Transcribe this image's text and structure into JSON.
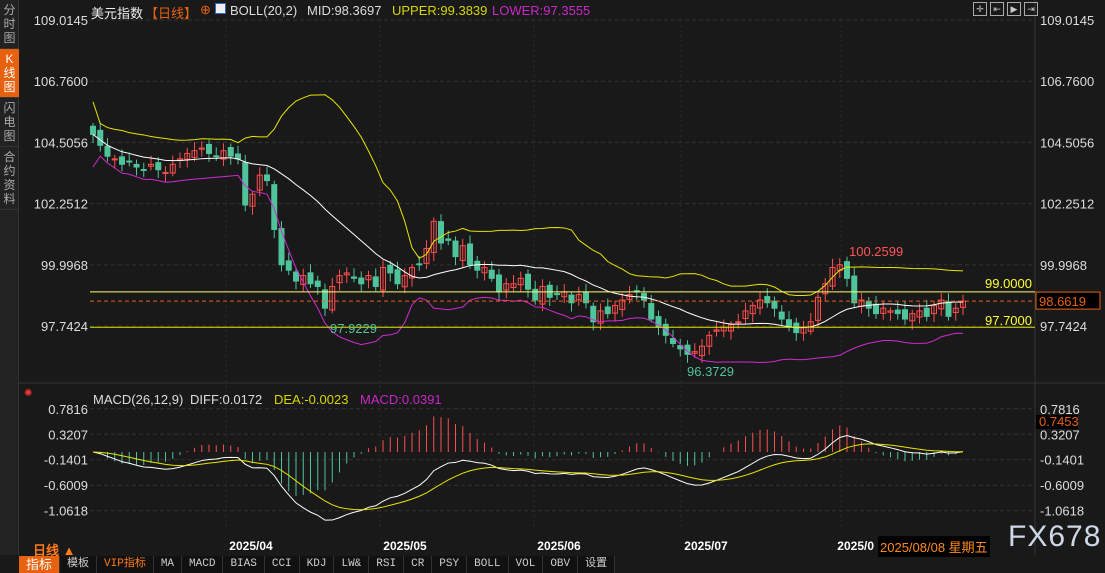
{
  "sidebar": {
    "tabs": [
      {
        "label": "分时图"
      },
      {
        "label": "K线图",
        "active": true
      },
      {
        "label": "闪电图"
      },
      {
        "label": "合约资料"
      }
    ]
  },
  "header": {
    "name": "美元指数",
    "period": "【日线】",
    "boll_label": "BOLL(20,2)",
    "mid": "MID:98.3697",
    "upper": "UPPER:99.3839",
    "lower": "LOWER:97.3555"
  },
  "toolbar": {
    "icons": [
      "crosshair-icon",
      "zoom-in-icon",
      "zoom-out-icon",
      "scroll-right-icon"
    ]
  },
  "price_axis": {
    "ticks": [
      "109.0145",
      "106.7600",
      "104.5056",
      "102.2512",
      "99.9968",
      "97.7424"
    ]
  },
  "annotations": {
    "high": "100.2599",
    "low1": "97.9229",
    "low2": "96.3729",
    "line_high": "99.0000",
    "line_low": "97.7000",
    "current": "98.6619"
  },
  "macd": {
    "label": "MACD(26,12,9)",
    "diff": "DIFF:0.0172",
    "dea": "DEA:-0.0023",
    "macd": "MACD:0.0391",
    "ticks": [
      "0.7816",
      "0.3207",
      "-0.1401",
      "-0.6009",
      "-1.0618"
    ],
    "current": "0.7453"
  },
  "dates": [
    "2025/04",
    "2025/05",
    "2025/06",
    "2025/07",
    "2025/0"
  ],
  "cursor_date": "2025/08/08 星期五",
  "period_selector": "日线 ▲",
  "watermark": "FX678",
  "bottom_tabs": [
    "指标",
    "模板",
    "VIP指标",
    "MA",
    "MACD",
    "BIAS",
    "CCI",
    "KDJ",
    "LW&",
    "RSI",
    "CR",
    "PSY",
    "BOLL",
    "VOL",
    "OBV",
    "设置"
  ],
  "colors": {
    "up": "#ff4d4d",
    "down": "#4fc49a",
    "mid": "#ffffff",
    "upper": "#e6e600",
    "lower": "#d02bd0",
    "accent": "#e8610e"
  },
  "chart_data": {
    "type": "candlestick",
    "ylim": [
      96.0,
      109.0145
    ],
    "closes": [
      104.8,
      104.4,
      104.0,
      103.9,
      103.7,
      103.8,
      103.6,
      103.5,
      103.7,
      103.5,
      103.4,
      103.7,
      103.9,
      104.1,
      104.2,
      104.3,
      104.1,
      104.0,
      104.2,
      104.0,
      103.9,
      102.2,
      102.6,
      103.3,
      103.1,
      101.3,
      100.0,
      99.8,
      99.4,
      99.6,
      99.3,
      99.2,
      98.4,
      99.2,
      99.6,
      99.7,
      99.5,
      99.3,
      99.6,
      99.2,
      99.9,
      99.7,
      99.3,
      99.6,
      99.9,
      100.0,
      100.6,
      101.6,
      100.8,
      100.9,
      100.3,
      100.7,
      100.0,
      99.8,
      99.9,
      99.5,
      99.0,
      99.3,
      99.3,
      99.5,
      99.1,
      98.7,
      99.2,
      98.8,
      98.9,
      99.0,
      98.6,
      98.9,
      98.6,
      97.9,
      98.3,
      98.2,
      98.5,
      98.7,
      98.9,
      99.0,
      98.7,
      98.0,
      97.7,
      97.4,
      97.1,
      96.9,
      96.7,
      96.8,
      97.0,
      97.4,
      97.6,
      97.7,
      97.8,
      97.9,
      98.3,
      98.5,
      98.7,
      98.6,
      98.4,
      98.0,
      97.7,
      97.5,
      97.7,
      97.9,
      98.8,
      99.3,
      99.9,
      100.0,
      99.5,
      98.6,
      98.7,
      98.4,
      98.2,
      98.4,
      98.3,
      98.2,
      98.0,
      98.2,
      98.3,
      98.1,
      98.5,
      98.7,
      98.1,
      98.4,
      98.66
    ]
  }
}
